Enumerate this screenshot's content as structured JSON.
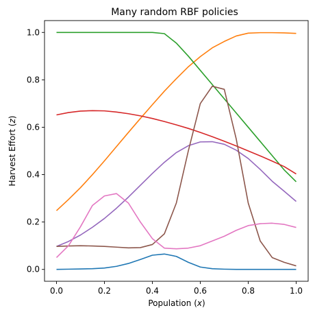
{
  "chart_data": {
    "type": "line",
    "title": "Many random RBF policies",
    "xlabel": "Population (x)",
    "xlabel_text": "Population (",
    "xlabel_var": "x",
    "xlabel_close": ")",
    "ylabel": "Harvest Effort (z)",
    "ylabel_text": "Harvest Effort (",
    "ylabel_var": "z",
    "ylabel_close": ")",
    "xlim": [
      -0.05,
      1.05
    ],
    "ylim": [
      -0.05,
      1.05
    ],
    "xticks": [
      0.0,
      0.2,
      0.4,
      0.6,
      0.8,
      1.0
    ],
    "xtick_labels": [
      "0.0",
      "0.2",
      "0.4",
      "0.6",
      "0.8",
      "1.0"
    ],
    "yticks": [
      0.0,
      0.2,
      0.4,
      0.6,
      0.8,
      1.0
    ],
    "ytick_labels": [
      "0.0",
      "0.2",
      "0.4",
      "0.6",
      "0.8",
      "1.0"
    ],
    "grid": false,
    "x": [
      0.0,
      0.05,
      0.1,
      0.15,
      0.2,
      0.25,
      0.3,
      0.35,
      0.4,
      0.45,
      0.5,
      0.55,
      0.6,
      0.65,
      0.7,
      0.75,
      0.8,
      0.85,
      0.9,
      0.95,
      1.0
    ],
    "series": [
      {
        "color": "#1f77b4",
        "values": [
          0.0,
          0.001,
          0.002,
          0.003,
          0.006,
          0.013,
          0.025,
          0.042,
          0.06,
          0.065,
          0.055,
          0.03,
          0.01,
          0.003,
          0.001,
          0.0,
          0.0,
          0.0,
          0.0,
          0.0,
          0.0
        ]
      },
      {
        "color": "#ff7f0e",
        "values": [
          0.248,
          0.295,
          0.345,
          0.4,
          0.458,
          0.518,
          0.578,
          0.637,
          0.695,
          0.752,
          0.805,
          0.855,
          0.898,
          0.935,
          0.962,
          0.985,
          0.997,
          0.999,
          0.999,
          0.998,
          0.996
        ]
      },
      {
        "color": "#2ca02c",
        "values": [
          1.0,
          1.0,
          1.0,
          1.0,
          1.0,
          1.0,
          1.0,
          1.0,
          1.0,
          0.995,
          0.955,
          0.9,
          0.84,
          0.78,
          0.72,
          0.66,
          0.6,
          0.54,
          0.48,
          0.42,
          0.37
        ]
      },
      {
        "color": "#d62728",
        "values": [
          0.652,
          0.662,
          0.668,
          0.67,
          0.669,
          0.664,
          0.657,
          0.648,
          0.637,
          0.624,
          0.61,
          0.595,
          0.578,
          0.56,
          0.541,
          0.521,
          0.5,
          0.479,
          0.457,
          0.434,
          0.403
        ]
      },
      {
        "color": "#9467bd",
        "values": [
          0.097,
          0.118,
          0.145,
          0.178,
          0.215,
          0.258,
          0.305,
          0.355,
          0.405,
          0.452,
          0.493,
          0.522,
          0.538,
          0.539,
          0.528,
          0.503,
          0.468,
          0.422,
          0.372,
          0.33,
          0.287
        ]
      },
      {
        "color": "#8c564b",
        "values": [
          0.097,
          0.099,
          0.1,
          0.099,
          0.097,
          0.094,
          0.091,
          0.092,
          0.105,
          0.15,
          0.28,
          0.5,
          0.7,
          0.773,
          0.76,
          0.55,
          0.28,
          0.12,
          0.05,
          0.03,
          0.015
        ]
      },
      {
        "color": "#e377c2",
        "values": [
          0.05,
          0.1,
          0.18,
          0.27,
          0.31,
          0.32,
          0.28,
          0.2,
          0.13,
          0.09,
          0.087,
          0.09,
          0.1,
          0.12,
          0.14,
          0.165,
          0.185,
          0.193,
          0.195,
          0.19,
          0.177
        ]
      }
    ]
  }
}
